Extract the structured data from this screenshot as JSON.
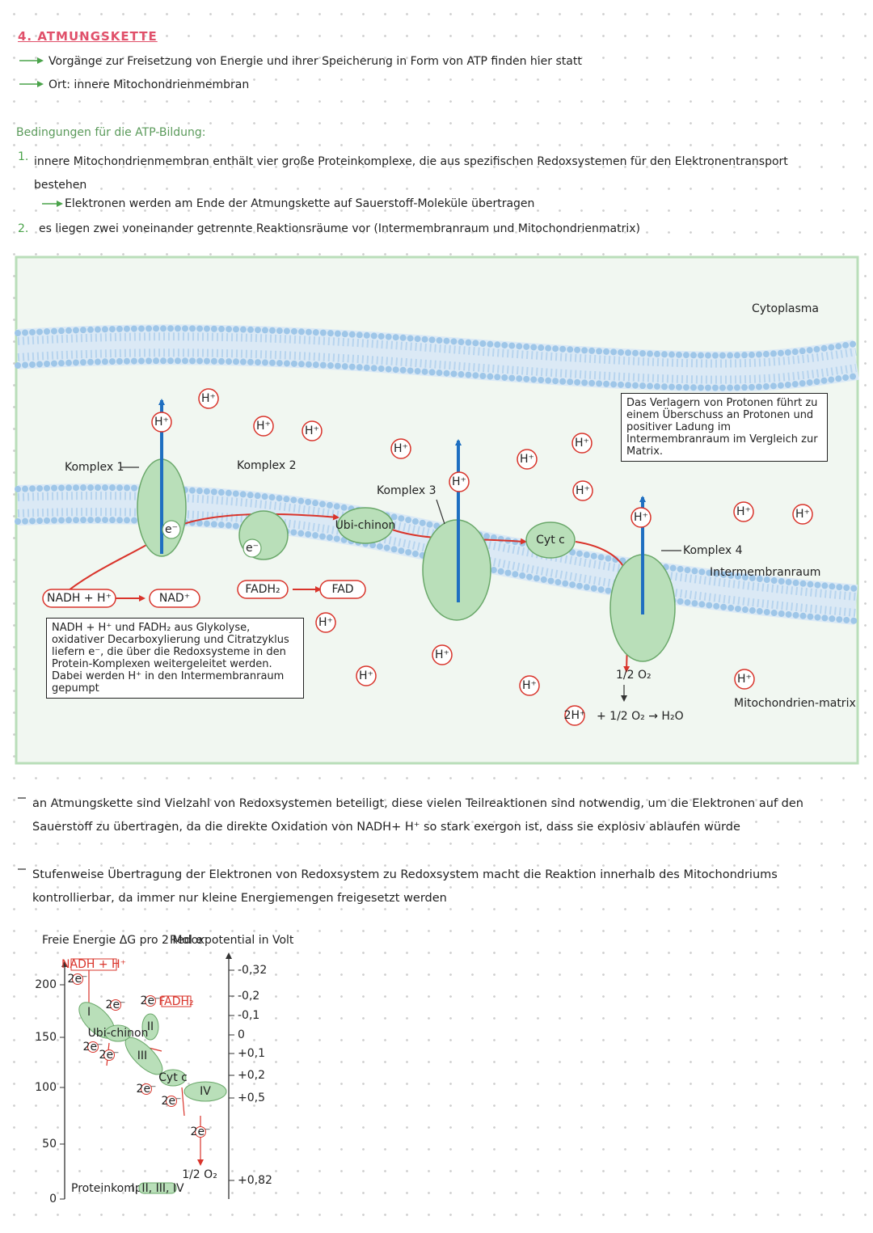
{
  "header": {
    "title": "4. ATMUNGSKETTE",
    "points": [
      "Vorgänge zur Freisetzung von Energie und ihrer Speicherung in Form von ATP finden hier statt",
      "Ort: innere Mitochondrienmembran"
    ]
  },
  "conditions": {
    "heading": "Bedingungen für die ATP-Bildung:",
    "items": [
      {
        "number": "1.",
        "text": "innere Mitochondrienmembran enthält vier große Proteinkomplexe, die aus spezifischen Redoxsystemen für den Elektronentransport bestehen",
        "sub": "Elektronen werden am Ende der Atmungskette auf Sauerstoff-Moleküle übertragen"
      },
      {
        "number": "2.",
        "text": "es liegen zwei voneinander getrennte Reaktionsräume vor (Intermembranraum und Mitochondrienmatrix)"
      }
    ]
  },
  "diagram": {
    "cytoplasma": "Cytoplasma",
    "komplex1": "Komplex 1",
    "komplex2": "Komplex 2",
    "komplex3": "Komplex 3",
    "komplex4": "Komplex 4",
    "ubichinon": "Ubi-chinon",
    "cytc": "Cyt c",
    "electron": "e⁻",
    "proton": "H⁺",
    "nadh": "NADH + H⁺",
    "nad": "NAD⁺",
    "fadh2": "FADH₂",
    "fad": "FAD",
    "intermembranraum": "Intermembranraum",
    "matrix": "Mitochondrien-matrix",
    "half_o2": "1/2 O₂",
    "two_h": "2H⁺",
    "reaction": "+ 1/2 O₂ → H₂O",
    "note_left": "NADH + H⁺ und FADH₂ aus Glykolyse, oxidativer Decarboxylierung und Citratzyklus liefern e⁻, die über die Redoxsysteme in den Protein-Komplexen weitergeleitet werden. Dabei werden H⁺ in den Intermembranraum gepumpt",
    "note_right": "Das Verlagern von Protonen führt zu einem Überschuss an Protonen und positiver Ladung im Intermembranraum im Vergleich zur Matrix."
  },
  "paragraphs": [
    "an Atmungskette sind Vielzahl von Redoxsystemen beteiligt, diese vielen Teilreaktionen sind notwendig, um die Elektronen auf den Sauerstoff zu übertragen, da die direkte Oxidation von NADH+ H⁺ so stark exergon ist, dass sie explosiv ablaufen würde",
    "Stufenweise Übertragung der Elektronen von Redoxsystem zu Redoxsystem macht die Reaktion innerhalb des Mitochondriums kontrollierbar, da immer nur kleine Energiemengen freigesetzt werden"
  ],
  "energy_chart": {
    "left_title": "Freie Energie ΔG pro 2 Mol e⁻",
    "right_title": "Redoxpotential in Volt",
    "left_ticks": [
      "200",
      "150",
      "100",
      "50",
      "0"
    ],
    "right_ticks": [
      "-0,32",
      "-0,2",
      "-0,1",
      "0",
      "+0,1",
      "+0,2",
      "+0,5",
      "+0,82"
    ],
    "nadh": "NADH + H⁺",
    "electrons": "2e⁻",
    "complexes": [
      "I",
      "II",
      "III",
      "IV"
    ],
    "ubichinon": "Ubi-chinon",
    "fadh2": "FADH₂",
    "cytc": "Cyt c",
    "oxygen": "1/2 O₂",
    "legend_label": "Proteinkomplex:",
    "legend_value": "I, II, III, IV"
  }
}
